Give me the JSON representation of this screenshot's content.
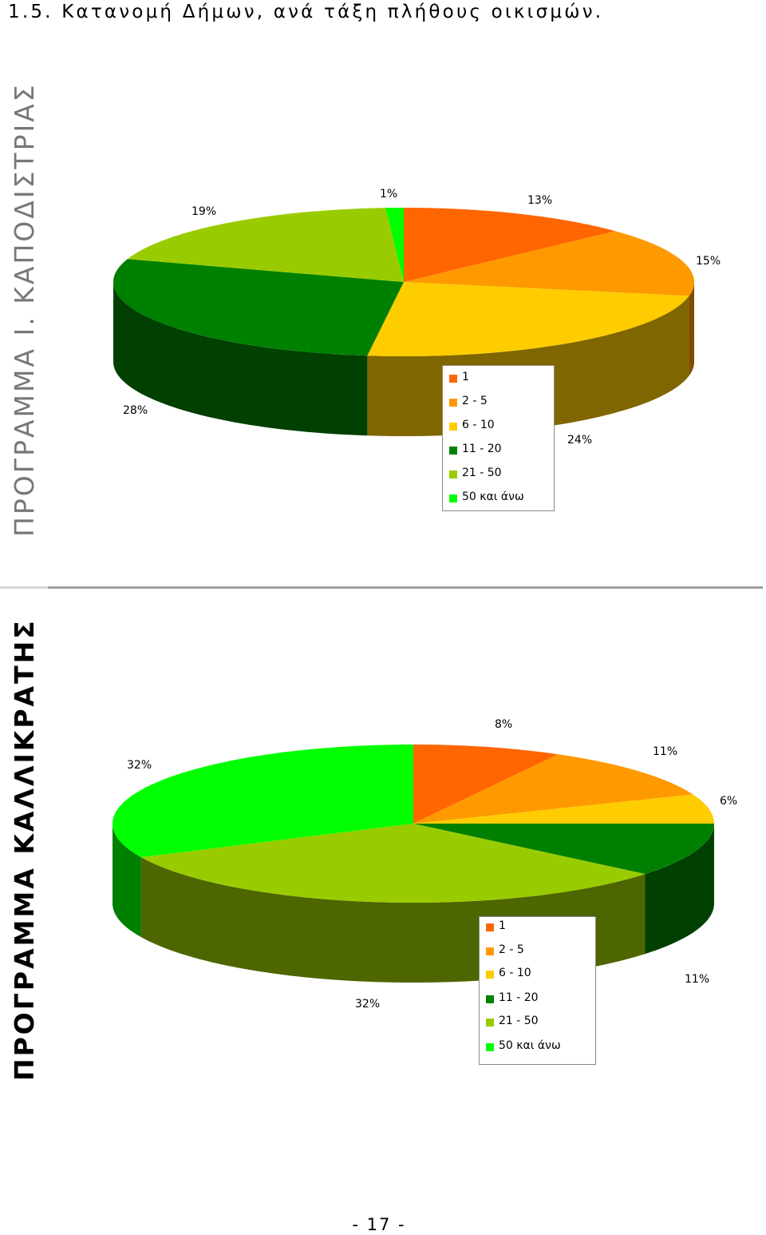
{
  "page": {
    "title": "1.5.   Κατανομή Δήμων, ανά τάξη πλήθους οικισμών.",
    "side_label_top": "ΠΡΟΓΡΑΜΜΑ Ι. ΚΑΠΟΔΙΣΤΡΙΑΣ",
    "side_label_bottom": "ΠΡΟΓΡΑΜΜΑ ΚΑΛΛΙΚΡΑΤΗΣ",
    "page_number": "- 17 -"
  },
  "chart_data": [
    {
      "type": "pie",
      "title": "",
      "labels": [
        "1",
        "2 - 5",
        "6 - 10",
        "11 - 20",
        "21 - 50",
        "50 και άνω"
      ],
      "values": [
        13,
        15,
        24,
        28,
        19,
        1
      ],
      "data_labels": [
        "13%",
        "15%",
        "24%",
        "28%",
        "19%",
        "1%"
      ],
      "colors": [
        "#ff6600",
        "#ff9900",
        "#ffcc00",
        "#008000",
        "#99cc00",
        "#00ff00"
      ],
      "legend": {
        "placement": "bottom-center",
        "entries": [
          "1",
          "2 - 5",
          "6 - 10",
          "11 - 20",
          "21 - 50",
          "50 και άνω"
        ]
      }
    },
    {
      "type": "pie",
      "title": "",
      "labels": [
        "1",
        "2 - 5",
        "6 - 10",
        "11 - 20",
        "21 - 50",
        "50 και άνω"
      ],
      "values": [
        8,
        11,
        6,
        11,
        32,
        32
      ],
      "data_labels": [
        "8%",
        "11%",
        "6%",
        "11%",
        "32%",
        "32%"
      ],
      "colors": [
        "#ff6600",
        "#ff9900",
        "#ffcc00",
        "#008000",
        "#99cc00",
        "#00ff00"
      ],
      "legend": {
        "placement": "bottom-center",
        "entries": [
          "1",
          "2 - 5",
          "6 - 10",
          "11 - 20",
          "21 - 50",
          "50 και άνω"
        ]
      }
    }
  ]
}
